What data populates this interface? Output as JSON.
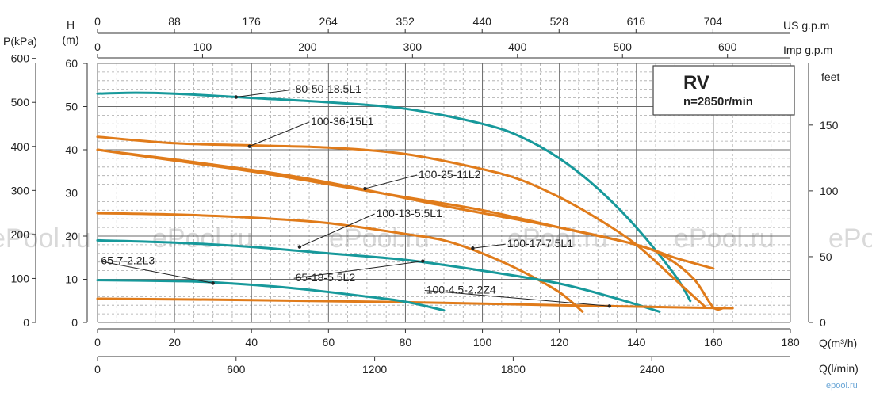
{
  "chart_data": {
    "type": "line",
    "title": "RV",
    "subtitle": "n=2850r/min",
    "watermark": "ePool.ru",
    "brand": "epool.ru",
    "axes": {
      "x_primary": {
        "label": "Q(m³/h)",
        "range": [
          0,
          180
        ],
        "ticks": [
          0,
          20,
          40,
          60,
          80,
          100,
          120,
          140,
          160,
          180
        ]
      },
      "x_lpm": {
        "label": "Q(l/min)",
        "ticks": [
          0,
          600,
          1200,
          1800,
          2400
        ]
      },
      "x_usgpm": {
        "label": "US g.p.m",
        "ticks": [
          0,
          88,
          176,
          264,
          352,
          440,
          528,
          616,
          704
        ]
      },
      "x_impgpm": {
        "label": "Imp g.p.m",
        "ticks": [
          0,
          100,
          200,
          300,
          400,
          500,
          600
        ]
      },
      "y_head_m": {
        "label_top": "H",
        "label_bottom": "(m)",
        "range": [
          0,
          60
        ],
        "ticks": [
          0,
          10,
          20,
          30,
          40,
          50,
          60
        ]
      },
      "y_pressure_kpa": {
        "label": "P(kPa)",
        "ticks": [
          0,
          100,
          200,
          300,
          400,
          500,
          600
        ]
      },
      "y_feet": {
        "label": "feet",
        "ticks": [
          0,
          50,
          100,
          150
        ]
      }
    },
    "colors": {
      "teal": "#17999b",
      "orange": "#e07b1a",
      "grid_major": "#6a6a6a",
      "grid_minor": "#a8a8a8"
    },
    "series": [
      {
        "name": "80-50-18.5L1",
        "color": "teal",
        "points": [
          [
            0,
            53
          ],
          [
            10,
            53.2
          ],
          [
            20,
            53
          ],
          [
            40,
            52
          ],
          [
            60,
            51
          ],
          [
            80,
            49.5
          ],
          [
            100,
            46
          ],
          [
            110,
            43
          ],
          [
            120,
            38
          ],
          [
            130,
            31
          ],
          [
            140,
            22
          ],
          [
            150,
            11
          ],
          [
            154,
            5
          ]
        ],
        "label_at": [
          36,
          52.2
        ],
        "label_text_pos": [
          51,
          53.2
        ]
      },
      {
        "name": "100-36-15L1",
        "color": "orange",
        "points": [
          [
            0,
            43
          ],
          [
            20,
            41.5
          ],
          [
            40,
            41
          ],
          [
            60,
            40.5
          ],
          [
            80,
            39
          ],
          [
            100,
            35.5
          ],
          [
            110,
            33
          ],
          [
            120,
            29
          ],
          [
            130,
            24
          ],
          [
            140,
            18
          ],
          [
            150,
            10
          ],
          [
            158,
            3.5
          ]
        ],
        "label_at": [
          39.5,
          40.8
        ],
        "label_text_pos": [
          55,
          45.7
        ]
      },
      {
        "name": "100-25-11L2",
        "color": "orange",
        "points": [
          [
            0,
            40
          ],
          [
            20,
            37.5
          ],
          [
            40,
            35
          ],
          [
            60,
            32
          ],
          [
            80,
            29
          ],
          [
            100,
            26
          ],
          [
            120,
            22
          ],
          [
            140,
            18
          ],
          [
            150,
            15
          ],
          [
            160,
            12.5
          ]
        ],
        "label_at": [
          69.5,
          31
        ],
        "label_text_pos": [
          83,
          33.4
        ]
      },
      {
        "name": "100-13-5.5L1",
        "color": "orange",
        "points": [
          [
            0,
            25.3
          ],
          [
            20,
            25
          ],
          [
            40,
            24.3
          ],
          [
            60,
            23
          ],
          [
            80,
            20.5
          ],
          [
            90,
            19
          ],
          [
            100,
            16
          ],
          [
            110,
            12
          ],
          [
            120,
            7
          ],
          [
            126,
            2.5
          ]
        ],
        "label_at": [
          52.5,
          17.5
        ],
        "label_text_pos": [
          72,
          24.4
        ]
      },
      {
        "name": "100-17-7.5L1",
        "color": "orange",
        "points": [
          [
            0,
            40
          ],
          [
            50,
            34
          ],
          [
            90,
            27
          ],
          [
            120,
            22
          ],
          [
            140,
            18
          ],
          [
            148,
            15
          ],
          [
            155,
            10
          ],
          [
            160,
            3.5
          ],
          [
            163,
            3.5
          ]
        ],
        "label_at": [
          97.5,
          17.2
        ],
        "label_text_pos": [
          106,
          17.4
        ]
      },
      {
        "name": "65-18-5.5L2",
        "color": "teal",
        "points": [
          [
            0,
            19
          ],
          [
            20,
            18.5
          ],
          [
            40,
            17.5
          ],
          [
            60,
            16
          ],
          [
            80,
            14.5
          ],
          [
            100,
            12
          ],
          [
            120,
            9
          ],
          [
            135,
            5.5
          ],
          [
            146,
            2.5
          ]
        ],
        "label_at": [
          84.5,
          14.2
        ],
        "label_text_pos": [
          51,
          9.5
        ]
      },
      {
        "name": "100-4.5-2.2Z4",
        "color": "orange",
        "points": [
          [
            0,
            5.5
          ],
          [
            40,
            5.2
          ],
          [
            80,
            4.7
          ],
          [
            120,
            4
          ],
          [
            150,
            3.5
          ],
          [
            165,
            3.3
          ]
        ],
        "label_at": [
          133,
          3.8
        ],
        "label_text_pos": [
          85,
          6.7
        ]
      },
      {
        "name": "65-7-2.2L3",
        "color": "teal",
        "points": [
          [
            0,
            9.8
          ],
          [
            20,
            9.6
          ],
          [
            30,
            9.3
          ],
          [
            50,
            8
          ],
          [
            70,
            6
          ],
          [
            80,
            4.8
          ],
          [
            90,
            2.8
          ]
        ],
        "label_at": [
          30,
          9.1
        ],
        "label_text_pos": [
          0.5,
          13.5
        ]
      }
    ]
  }
}
